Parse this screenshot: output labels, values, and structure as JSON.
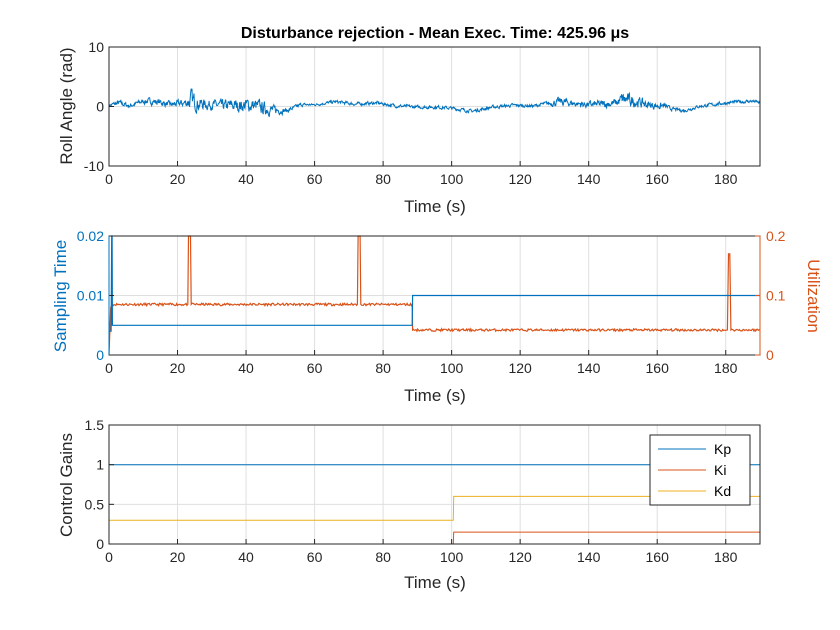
{
  "chart_data": [
    {
      "type": "line",
      "title": "Disturbance rejection - Mean Exec. Time: 425.96 μs",
      "xlabel": "Time (s)",
      "ylabel": "Roll Angle (rad)",
      "xlim": [
        0,
        190
      ],
      "ylim": [
        -10,
        10
      ],
      "xticks": [
        0,
        20,
        40,
        60,
        80,
        100,
        120,
        140,
        160,
        180
      ],
      "yticks": [
        -10,
        0,
        10
      ],
      "grid": true,
      "series_color": "#0072BD",
      "envelope": {
        "x": [
          0,
          3,
          6,
          10,
          14,
          18,
          22,
          24,
          26,
          30,
          34,
          38,
          42,
          45,
          48,
          52,
          56,
          60,
          66,
          72,
          78,
          84,
          90,
          96,
          100,
          106,
          112,
          118,
          124,
          128,
          132,
          136,
          140,
          144,
          148,
          150,
          154,
          158,
          162,
          164,
          168,
          172,
          176,
          180,
          184,
          188,
          190
        ],
        "mid": [
          0.2,
          0.6,
          0.1,
          0.9,
          0.8,
          0.3,
          0.6,
          1.1,
          0.5,
          0.3,
          0.1,
          0.2,
          0.2,
          -0.3,
          -0.6,
          -0.7,
          0.3,
          0.3,
          0.8,
          0.4,
          0.6,
          0.1,
          -0.1,
          -0.1,
          -0.3,
          -0.8,
          -0.1,
          0.2,
          0.1,
          0.5,
          0.8,
          0.5,
          0.3,
          0.4,
          0.6,
          1.2,
          0.8,
          0.2,
          0.1,
          -0.4,
          -0.7,
          0.0,
          0.3,
          0.6,
          0.8,
          0.9,
          0.6
        ],
        "amp": [
          0.3,
          0.5,
          0.4,
          0.5,
          0.6,
          0.5,
          0.7,
          1.8,
          1.2,
          0.8,
          1.0,
          1.2,
          1.3,
          1.2,
          0.8,
          0.4,
          0.3,
          0.2,
          0.3,
          0.3,
          0.3,
          0.3,
          0.3,
          0.3,
          0.3,
          0.3,
          0.3,
          0.3,
          0.3,
          0.4,
          0.8,
          0.6,
          0.6,
          0.7,
          0.8,
          1.3,
          1.0,
          0.7,
          0.6,
          0.3,
          0.3,
          0.3,
          0.3,
          0.3,
          0.3,
          0.3,
          0.3
        ]
      }
    },
    {
      "type": "line",
      "xlabel": "Time (s)",
      "ylabel_left": "Sampling Time",
      "ylabel_right": "Utilization",
      "xlim": [
        0,
        190
      ],
      "ylim_left": [
        0,
        0.02
      ],
      "ylim_right": [
        0,
        0.2
      ],
      "xticks": [
        0,
        20,
        40,
        60,
        80,
        100,
        120,
        140,
        160,
        180
      ],
      "yticks_left": [
        0,
        0.01,
        0.02
      ],
      "yticks_left_labels": [
        "0",
        "0.01",
        "0.02"
      ],
      "yticks_right": [
        0,
        0.1,
        0.2
      ],
      "yticks_right_labels": [
        "0",
        "0.1",
        "0.2"
      ],
      "grid": true,
      "left_color": "#0072BD",
      "right_color": "#D95319",
      "sampling_time": {
        "x": [
          0,
          0.6,
          0.8,
          0.9,
          1.0,
          88.5,
          88.6,
          190
        ],
        "y": [
          0.004,
          0.004,
          0.02,
          0.02,
          0.005,
          0.005,
          0.01,
          0.01
        ]
      },
      "utilization": {
        "x": [
          0,
          0.5,
          1.0,
          23.0,
          23.2,
          23.8,
          24.0,
          72.5,
          72.7,
          73.3,
          73.5,
          88.5,
          88.6,
          180.5,
          180.8,
          181.2,
          181.5,
          190
        ],
        "y": [
          0.0,
          0.08,
          0.085,
          0.085,
          0.2,
          0.2,
          0.085,
          0.085,
          0.2,
          0.2,
          0.085,
          0.085,
          0.042,
          0.042,
          0.17,
          0.17,
          0.042,
          0.042
        ]
      }
    },
    {
      "type": "line",
      "xlabel": "Time (s)",
      "ylabel": "Control Gains",
      "xlim": [
        0,
        190
      ],
      "ylim": [
        0,
        1.5
      ],
      "xticks": [
        0,
        20,
        40,
        60,
        80,
        100,
        120,
        140,
        160,
        180
      ],
      "yticks": [
        0,
        0.5,
        1,
        1.5
      ],
      "yticks_labels": [
        "0",
        "0.5",
        "1",
        "1.5"
      ],
      "grid": true,
      "legend_position": "top-right",
      "series": [
        {
          "name": "Kp",
          "color": "#0072BD",
          "x": [
            0,
            190
          ],
          "y": [
            1.0,
            1.0
          ]
        },
        {
          "name": "Ki",
          "color": "#D95319",
          "x": [
            0,
            100.5,
            100.6,
            190
          ],
          "y": [
            0.0,
            0.0,
            0.15,
            0.15
          ]
        },
        {
          "name": "Kd",
          "color": "#EDB120",
          "x": [
            0,
            100.5,
            100.6,
            190
          ],
          "y": [
            0.3,
            0.3,
            0.6,
            0.6
          ]
        }
      ]
    }
  ]
}
